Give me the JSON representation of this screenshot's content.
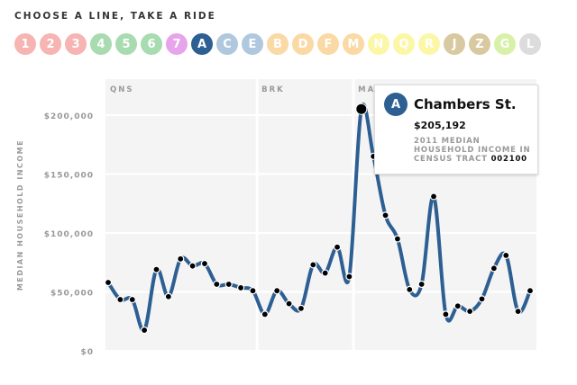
{
  "header": {
    "title": "CHOOSE A LINE, TAKE A RIDE"
  },
  "lines": [
    {
      "label": "1",
      "color": "#f6b4b2"
    },
    {
      "label": "2",
      "color": "#f6b4b2"
    },
    {
      "label": "3",
      "color": "#f6b4b2"
    },
    {
      "label": "4",
      "color": "#a8dcb0"
    },
    {
      "label": "5",
      "color": "#a8dcb0"
    },
    {
      "label": "6",
      "color": "#a8dcb0"
    },
    {
      "label": "7",
      "color": "#e7a4ea"
    },
    {
      "label": "A",
      "color": "#2d5f93",
      "selected": true
    },
    {
      "label": "C",
      "color": "#b0c8de"
    },
    {
      "label": "E",
      "color": "#b0c8de"
    },
    {
      "label": "B",
      "color": "#fad9a4"
    },
    {
      "label": "D",
      "color": "#fad9a4"
    },
    {
      "label": "F",
      "color": "#fad9a4"
    },
    {
      "label": "M",
      "color": "#fad9a4"
    },
    {
      "label": "N",
      "color": "#fbf7a6"
    },
    {
      "label": "Q",
      "color": "#fbf7a6"
    },
    {
      "label": "R",
      "color": "#fbf7a6"
    },
    {
      "label": "J",
      "color": "#d8c9a0"
    },
    {
      "label": "Z",
      "color": "#d8c9a0"
    },
    {
      "label": "G",
      "color": "#d8f1a8"
    },
    {
      "label": "L",
      "color": "#dcdcdc"
    }
  ],
  "tooltip": {
    "line": "A",
    "station": "Chambers St.",
    "value": "$205,192",
    "desc": "2011 MEDIAN HOUSEHOLD INCOME IN CENSUS TRACT",
    "tract": "002100"
  },
  "chart_data": {
    "type": "line",
    "ylabel": "MEDIAN HOUSEHOLD INCOME",
    "ylim": [
      0,
      200000
    ],
    "yticks": [
      {
        "v": 0,
        "label": "$0"
      },
      {
        "v": 50000,
        "label": "$50,000"
      },
      {
        "v": 100000,
        "label": "$100,000"
      },
      {
        "v": 150000,
        "label": "$150,000"
      },
      {
        "v": 200000,
        "label": "$200,000"
      }
    ],
    "grid": true,
    "line_color": "#2d5f93",
    "boroughs": [
      {
        "label": "QNS",
        "start": 0
      },
      {
        "label": "BRK",
        "start": 12.5
      },
      {
        "label": "MAN",
        "start": 20.5
      }
    ],
    "values": [
      58000,
      43500,
      43500,
      17500,
      69000,
      46000,
      78000,
      72000,
      74000,
      56500,
      56500,
      53500,
      51000,
      31000,
      51000,
      40000,
      36000,
      73000,
      66000,
      88000,
      63000,
      205192,
      165000,
      115000,
      95000,
      52000,
      56500,
      131000,
      31000,
      38000,
      33500,
      44000,
      70000,
      81000,
      33500,
      51000
    ],
    "highlight_index": 21
  }
}
